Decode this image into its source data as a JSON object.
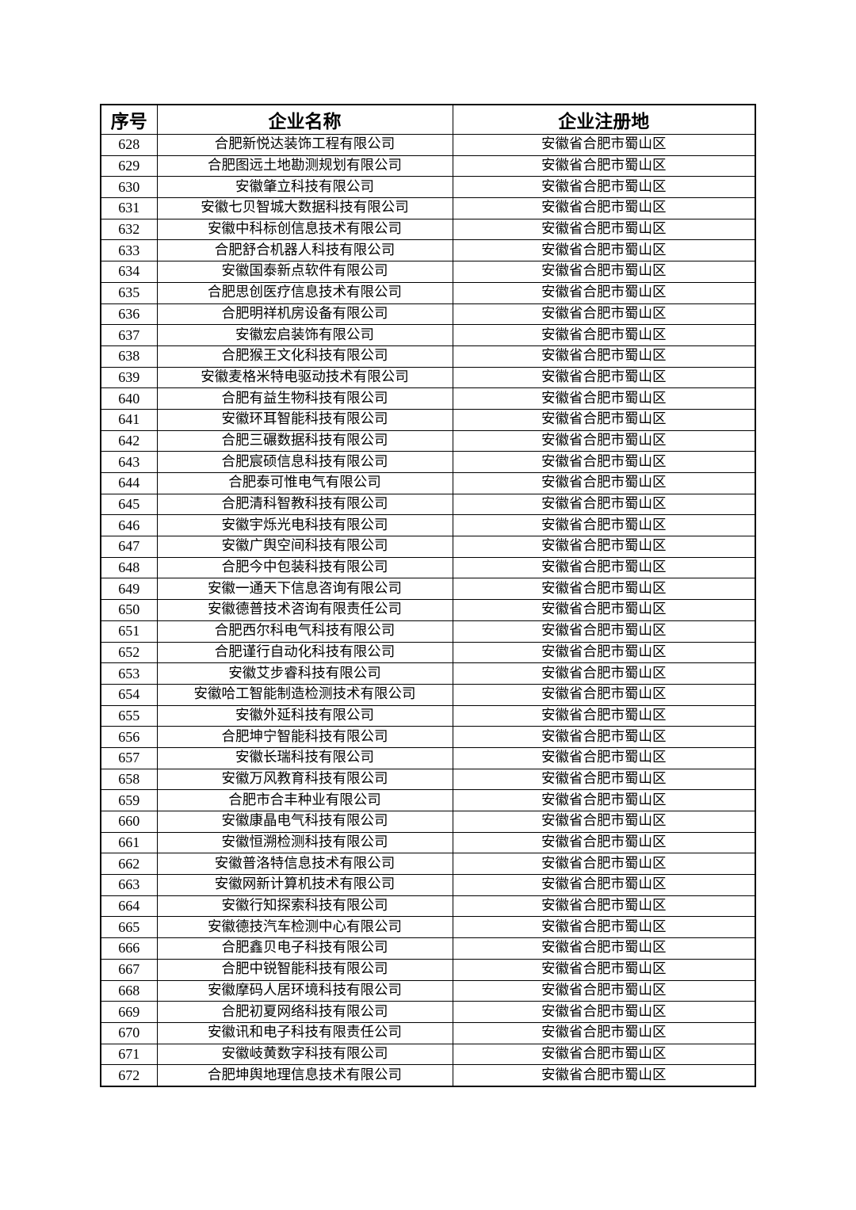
{
  "table": {
    "headers": [
      "序号",
      "企业名称",
      "企业注册地"
    ],
    "rows": [
      [
        "628",
        "合肥新悦达装饰工程有限公司",
        "安徽省合肥市蜀山区"
      ],
      [
        "629",
        "合肥图远土地勘测规划有限公司",
        "安徽省合肥市蜀山区"
      ],
      [
        "630",
        "安徽肇立科技有限公司",
        "安徽省合肥市蜀山区"
      ],
      [
        "631",
        "安徽七贝智城大数据科技有限公司",
        "安徽省合肥市蜀山区"
      ],
      [
        "632",
        "安徽中科标创信息技术有限公司",
        "安徽省合肥市蜀山区"
      ],
      [
        "633",
        "合肥舒合机器人科技有限公司",
        "安徽省合肥市蜀山区"
      ],
      [
        "634",
        "安徽国泰新点软件有限公司",
        "安徽省合肥市蜀山区"
      ],
      [
        "635",
        "合肥思创医疗信息技术有限公司",
        "安徽省合肥市蜀山区"
      ],
      [
        "636",
        "合肥明祥机房设备有限公司",
        "安徽省合肥市蜀山区"
      ],
      [
        "637",
        "安徽宏启装饰有限公司",
        "安徽省合肥市蜀山区"
      ],
      [
        "638",
        "合肥猴王文化科技有限公司",
        "安徽省合肥市蜀山区"
      ],
      [
        "639",
        "安徽麦格米特电驱动技术有限公司",
        "安徽省合肥市蜀山区"
      ],
      [
        "640",
        "合肥有益生物科技有限公司",
        "安徽省合肥市蜀山区"
      ],
      [
        "641",
        "安徽环耳智能科技有限公司",
        "安徽省合肥市蜀山区"
      ],
      [
        "642",
        "合肥三碾数据科技有限公司",
        "安徽省合肥市蜀山区"
      ],
      [
        "643",
        "合肥宸硕信息科技有限公司",
        "安徽省合肥市蜀山区"
      ],
      [
        "644",
        "合肥泰可惟电气有限公司",
        "安徽省合肥市蜀山区"
      ],
      [
        "645",
        "合肥清科智教科技有限公司",
        "安徽省合肥市蜀山区"
      ],
      [
        "646",
        "安徽宇烁光电科技有限公司",
        "安徽省合肥市蜀山区"
      ],
      [
        "647",
        "安徽广舆空间科技有限公司",
        "安徽省合肥市蜀山区"
      ],
      [
        "648",
        "合肥今中包装科技有限公司",
        "安徽省合肥市蜀山区"
      ],
      [
        "649",
        "安徽一通天下信息咨询有限公司",
        "安徽省合肥市蜀山区"
      ],
      [
        "650",
        "安徽德普技术咨询有限责任公司",
        "安徽省合肥市蜀山区"
      ],
      [
        "651",
        "合肥西尔科电气科技有限公司",
        "安徽省合肥市蜀山区"
      ],
      [
        "652",
        "合肥谨行自动化科技有限公司",
        "安徽省合肥市蜀山区"
      ],
      [
        "653",
        "安徽艾步睿科技有限公司",
        "安徽省合肥市蜀山区"
      ],
      [
        "654",
        "安徽哈工智能制造检测技术有限公司",
        "安徽省合肥市蜀山区"
      ],
      [
        "655",
        "安徽外延科技有限公司",
        "安徽省合肥市蜀山区"
      ],
      [
        "656",
        "合肥坤宁智能科技有限公司",
        "安徽省合肥市蜀山区"
      ],
      [
        "657",
        "安徽长瑞科技有限公司",
        "安徽省合肥市蜀山区"
      ],
      [
        "658",
        "安徽万风教育科技有限公司",
        "安徽省合肥市蜀山区"
      ],
      [
        "659",
        "合肥市合丰种业有限公司",
        "安徽省合肥市蜀山区"
      ],
      [
        "660",
        "安徽康晶电气科技有限公司",
        "安徽省合肥市蜀山区"
      ],
      [
        "661",
        "安徽恒溯检测科技有限公司",
        "安徽省合肥市蜀山区"
      ],
      [
        "662",
        "安徽普洛特信息技术有限公司",
        "安徽省合肥市蜀山区"
      ],
      [
        "663",
        "安徽网新计算机技术有限公司",
        "安徽省合肥市蜀山区"
      ],
      [
        "664",
        "安徽行知探索科技有限公司",
        "安徽省合肥市蜀山区"
      ],
      [
        "665",
        "安徽德技汽车检测中心有限公司",
        "安徽省合肥市蜀山区"
      ],
      [
        "666",
        "合肥鑫贝电子科技有限公司",
        "安徽省合肥市蜀山区"
      ],
      [
        "667",
        "合肥中锐智能科技有限公司",
        "安徽省合肥市蜀山区"
      ],
      [
        "668",
        "安徽摩码人居环境科技有限公司",
        "安徽省合肥市蜀山区"
      ],
      [
        "669",
        "合肥初夏网络科技有限公司",
        "安徽省合肥市蜀山区"
      ],
      [
        "670",
        "安徽讯和电子科技有限责任公司",
        "安徽省合肥市蜀山区"
      ],
      [
        "671",
        "安徽岐黄数字科技有限公司",
        "安徽省合肥市蜀山区"
      ],
      [
        "672",
        "合肥坤舆地理信息技术有限公司",
        "安徽省合肥市蜀山区"
      ]
    ]
  }
}
